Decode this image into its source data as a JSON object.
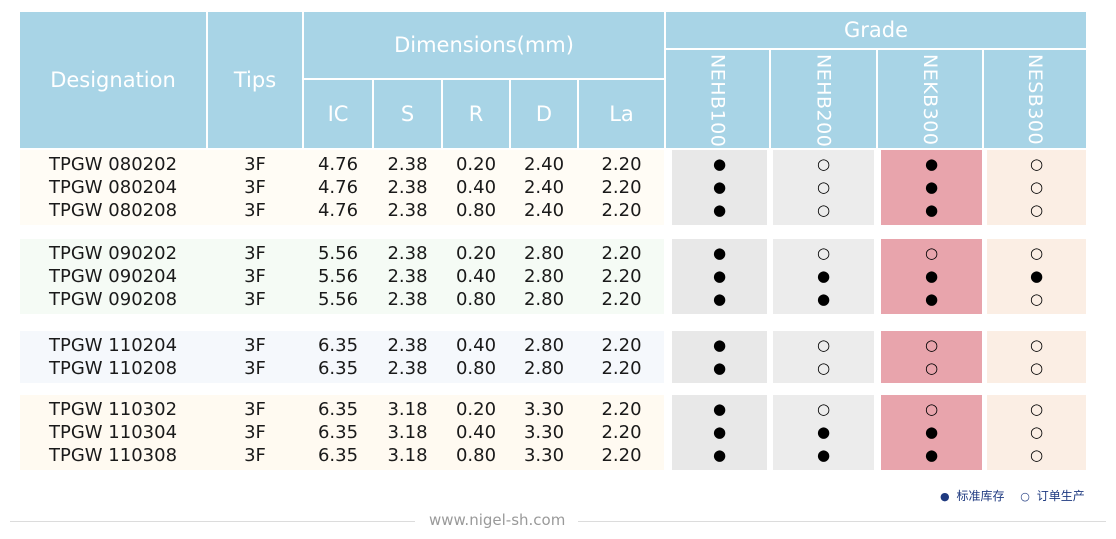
{
  "header": {
    "designation": "Designation",
    "tips": "Tips",
    "dimensions": "Dimensions(mm)",
    "grade": "Grade",
    "dim_cols": [
      "IC",
      "S",
      "R",
      "D",
      "La"
    ],
    "grade_cols": [
      "NEHB100",
      "NEHB200",
      "NEKB300",
      "NESB300"
    ]
  },
  "groups": [
    {
      "rows": [
        {
          "designation": "TPGW 080202",
          "tips": "3F",
          "IC": "4.76",
          "S": "2.38",
          "R": "0.20",
          "D": "2.40",
          "La": "2.20",
          "grades": [
            "●",
            "○",
            "●",
            "○"
          ]
        },
        {
          "designation": "TPGW 080204",
          "tips": "3F",
          "IC": "4.76",
          "S": "2.38",
          "R": "0.40",
          "D": "2.40",
          "La": "2.20",
          "grades": [
            "●",
            "○",
            "●",
            "○"
          ]
        },
        {
          "designation": "TPGW 080208",
          "tips": "3F",
          "IC": "4.76",
          "S": "2.38",
          "R": "0.80",
          "D": "2.40",
          "La": "2.20",
          "grades": [
            "●",
            "○",
            "●",
            "○"
          ]
        }
      ]
    },
    {
      "rows": [
        {
          "designation": "TPGW 090202",
          "tips": "3F",
          "IC": "5.56",
          "S": "2.38",
          "R": "0.20",
          "D": "2.80",
          "La": "2.20",
          "grades": [
            "●",
            "○",
            "○",
            "○"
          ]
        },
        {
          "designation": "TPGW 090204",
          "tips": "3F",
          "IC": "5.56",
          "S": "2.38",
          "R": "0.40",
          "D": "2.80",
          "La": "2.20",
          "grades": [
            "●",
            "●",
            "●",
            "●"
          ]
        },
        {
          "designation": "TPGW 090208",
          "tips": "3F",
          "IC": "5.56",
          "S": "2.38",
          "R": "0.80",
          "D": "2.80",
          "La": "2.20",
          "grades": [
            "●",
            "●",
            "●",
            "○"
          ]
        }
      ]
    },
    {
      "rows": [
        {
          "designation": "TPGW 110204",
          "tips": "3F",
          "IC": "6.35",
          "S": "2.38",
          "R": "0.40",
          "D": "2.80",
          "La": "2.20",
          "grades": [
            "●",
            "○",
            "○",
            "○"
          ]
        },
        {
          "designation": "TPGW 110208",
          "tips": "3F",
          "IC": "6.35",
          "S": "2.38",
          "R": "0.80",
          "D": "2.80",
          "La": "2.20",
          "grades": [
            "●",
            "○",
            "○",
            "○"
          ]
        }
      ]
    },
    {
      "rows": [
        {
          "designation": "TPGW 110302",
          "tips": "3F",
          "IC": "6.35",
          "S": "3.18",
          "R": "0.20",
          "D": "3.30",
          "La": "2.20",
          "grades": [
            "●",
            "○",
            "○",
            "○"
          ]
        },
        {
          "designation": "TPGW 110304",
          "tips": "3F",
          "IC": "6.35",
          "S": "3.18",
          "R": "0.40",
          "D": "3.30",
          "La": "2.20",
          "grades": [
            "●",
            "●",
            "●",
            "○"
          ]
        },
        {
          "designation": "TPGW 110308",
          "tips": "3F",
          "IC": "6.35",
          "S": "3.18",
          "R": "0.80",
          "D": "3.30",
          "La": "2.20",
          "grades": [
            "●",
            "●",
            "●",
            "○"
          ]
        }
      ]
    }
  ],
  "legend": {
    "filled_symbol": "●",
    "filled_label": "标准库存",
    "hollow_symbol": "○",
    "hollow_label": "订单生产"
  },
  "footer": {
    "text": "www.nigel-sh.com"
  },
  "colors": {
    "header_bg": "#a8d4e6",
    "grade1_bg": "#e8e8e8",
    "grade2_bg": "#ececec",
    "grade3_bg": "#e8a4ac",
    "grade4_bg": "#fbeee4"
  }
}
